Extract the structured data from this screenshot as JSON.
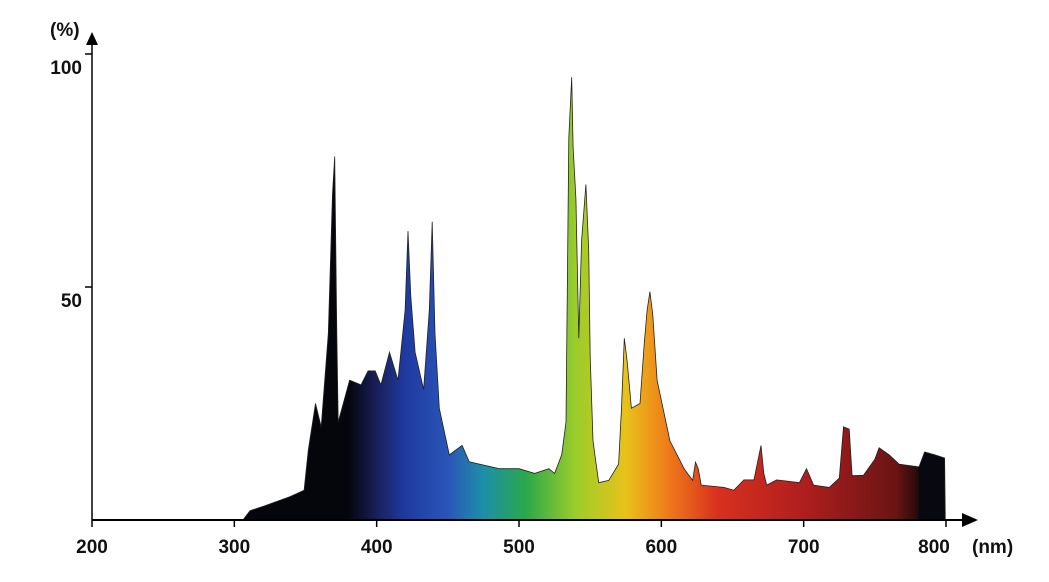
{
  "chart_data": {
    "type": "area",
    "title": "",
    "xlabel": "(nm)",
    "ylabel": "(%)",
    "xlim": [
      200,
      800
    ],
    "ylim": [
      0,
      100
    ],
    "x_ticks": [
      "200",
      "300",
      "400",
      "500",
      "600",
      "700",
      "800"
    ],
    "y_ticks": [
      "50",
      "100"
    ],
    "grid": false,
    "legend": "none",
    "fill": "visible-spectrum color gradient by wavelength",
    "gradient_stops": [
      {
        "nm": 300,
        "color": "#05050c"
      },
      {
        "nm": 380,
        "color": "#05050c"
      },
      {
        "nm": 400,
        "color": "#1a1f5a"
      },
      {
        "nm": 420,
        "color": "#1f3aa0"
      },
      {
        "nm": 450,
        "color": "#2a55b8"
      },
      {
        "nm": 475,
        "color": "#1d8fa8"
      },
      {
        "nm": 505,
        "color": "#2aa84a"
      },
      {
        "nm": 540,
        "color": "#9ccd2a"
      },
      {
        "nm": 575,
        "color": "#e8c21a"
      },
      {
        "nm": 605,
        "color": "#ef7a1a"
      },
      {
        "nm": 640,
        "color": "#d8301e"
      },
      {
        "nm": 700,
        "color": "#b01e1e"
      },
      {
        "nm": 765,
        "color": "#6a1414"
      },
      {
        "nm": 780,
        "color": "#2a0a0a"
      },
      {
        "nm": 781,
        "color": "#080810"
      },
      {
        "nm": 800,
        "color": "#080810"
      }
    ],
    "series": [
      {
        "points": [
          [
            306,
            0
          ],
          [
            311,
            2
          ],
          [
            321,
            3
          ],
          [
            339,
            5
          ],
          [
            349,
            6.4
          ],
          [
            352,
            15
          ],
          [
            357,
            25
          ],
          [
            361,
            20
          ],
          [
            366,
            40
          ],
          [
            369,
            70
          ],
          [
            370.5,
            78
          ],
          [
            372,
            40
          ],
          [
            373,
            21
          ],
          [
            381,
            30
          ],
          [
            389,
            29
          ],
          [
            394,
            32
          ],
          [
            399,
            32
          ],
          [
            403,
            29
          ],
          [
            409,
            36
          ],
          [
            415,
            30
          ],
          [
            420,
            45
          ],
          [
            422,
            62
          ],
          [
            424,
            48
          ],
          [
            427,
            36
          ],
          [
            433,
            28
          ],
          [
            437,
            45
          ],
          [
            439,
            64
          ],
          [
            441,
            40
          ],
          [
            444,
            24
          ],
          [
            451,
            14
          ],
          [
            460,
            16
          ],
          [
            465,
            12.5
          ],
          [
            486,
            11
          ],
          [
            500,
            11
          ],
          [
            511,
            10
          ],
          [
            521,
            11
          ],
          [
            525,
            10
          ],
          [
            530,
            14
          ],
          [
            533,
            21
          ],
          [
            535,
            82
          ],
          [
            537,
            95
          ],
          [
            538,
            80
          ],
          [
            540,
            69
          ],
          [
            542,
            39
          ],
          [
            544,
            60
          ],
          [
            547,
            72
          ],
          [
            549,
            58
          ],
          [
            550,
            35
          ],
          [
            552,
            17
          ],
          [
            556,
            8
          ],
          [
            563,
            8.5
          ],
          [
            570,
            12
          ],
          [
            572,
            24
          ],
          [
            574,
            39
          ],
          [
            576,
            34
          ],
          [
            579,
            24
          ],
          [
            585,
            25
          ],
          [
            588,
            38
          ],
          [
            590,
            45
          ],
          [
            592,
            49
          ],
          [
            594,
            44
          ],
          [
            597,
            30
          ],
          [
            606,
            17
          ],
          [
            616,
            11
          ],
          [
            622,
            8.5
          ],
          [
            624,
            12.4
          ],
          [
            626,
            11
          ],
          [
            628,
            7.5
          ],
          [
            644,
            7
          ],
          [
            651,
            6.4
          ],
          [
            658,
            8.6
          ],
          [
            665,
            8.6
          ],
          [
            670,
            16
          ],
          [
            672,
            10
          ],
          [
            674,
            7.5
          ],
          [
            681,
            8.6
          ],
          [
            687,
            8.4
          ],
          [
            697,
            8
          ],
          [
            702,
            11
          ],
          [
            707,
            7.5
          ],
          [
            718,
            7
          ],
          [
            725,
            9
          ],
          [
            728,
            20
          ],
          [
            732,
            19.5
          ],
          [
            734,
            9.5
          ],
          [
            742,
            9.6
          ],
          [
            750,
            13
          ],
          [
            753,
            15.5
          ],
          [
            760,
            14
          ],
          [
            767,
            12
          ],
          [
            781,
            11.4
          ],
          [
            785,
            14.6
          ],
          [
            792,
            14
          ],
          [
            799,
            13.3
          ],
          [
            799.5,
            0
          ]
        ]
      }
    ]
  }
}
